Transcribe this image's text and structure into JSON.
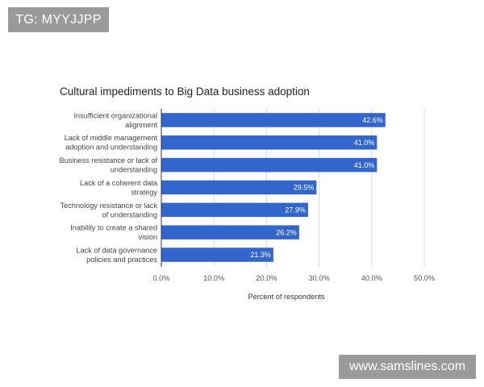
{
  "watermark_top": "TG: MYYJJPP",
  "watermark_bottom": "www.samslines.com",
  "chart_data": {
    "type": "bar",
    "orientation": "horizontal",
    "title": "Cultural impediments to Big Data business adoption",
    "xlabel": "Percent of respondents",
    "ylabel": "",
    "categories": [
      [
        "Insufficient organizational",
        "alignment"
      ],
      [
        "Lack of middle management",
        "adoption and understanding"
      ],
      [
        "Business resistance or lack of",
        "understanding"
      ],
      [
        "Lack of a coherent data",
        "strategy"
      ],
      [
        "Technology resistance or lack",
        "of understanding"
      ],
      [
        "Inability to create a shared",
        "vision"
      ],
      [
        "Lack of data governance",
        "policies and practices"
      ]
    ],
    "values": [
      42.6,
      41.0,
      41.0,
      29.5,
      27.9,
      26.2,
      21.3
    ],
    "data_labels": [
      "42.6%",
      "41.0%",
      "41.0%",
      "29.5%",
      "27.9%",
      "26.2%",
      "21.3%"
    ],
    "xlim": [
      0,
      50
    ],
    "ticks": [
      0,
      10,
      20,
      30,
      40,
      50
    ],
    "tick_labels": [
      "0.0%",
      "10.0%",
      "20.0%",
      "30.0%",
      "40.0%",
      "50.0%"
    ],
    "grid": true,
    "legend": "none",
    "bar_color": "#3366cc"
  }
}
